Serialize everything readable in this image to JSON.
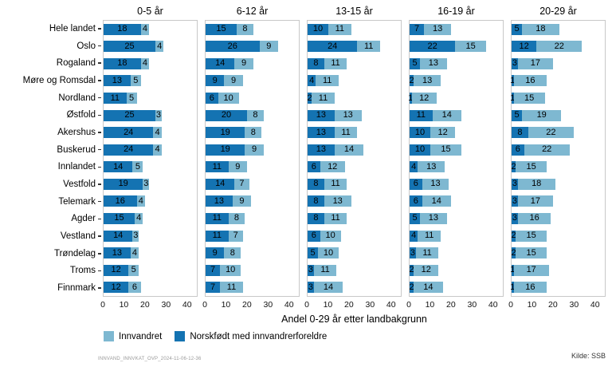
{
  "chart_data": {
    "type": "bar",
    "orientation": "horizontal-stacked",
    "grid": false,
    "xlim": [
      0,
      45
    ],
    "x_ticks": [
      0,
      10,
      20,
      30,
      40
    ],
    "xlabel": "Andel 0-29 år etter landbakgrunn",
    "colors": {
      "norskfodt": "#1473b2",
      "innvandret": "#7eb8d1",
      "panel_border": "#c8c8c8"
    },
    "categories": [
      "Hele landet",
      "Oslo",
      "Rogaland",
      "Møre og Romsdal",
      "Nordland",
      "Østfold",
      "Akershus",
      "Buskerud",
      "Innlandet",
      "Vestfold",
      "Telemark",
      "Agder",
      "Vestland",
      "Trøndelag",
      "Troms",
      "Finnmark"
    ],
    "facets": [
      {
        "title": "0-5 år",
        "series": [
          {
            "name": "Norskfødt med innvandrerforeldre",
            "values": [
              18,
              25,
              18,
              13,
              11,
              25,
              24,
              24,
              14,
              19,
              16,
              15,
              14,
              13,
              12,
              12
            ]
          },
          {
            "name": "Innvandret",
            "values": [
              4,
              4,
              4,
              5,
              5,
              3,
              4,
              4,
              5,
              3,
              4,
              4,
              3,
              4,
              5,
              6
            ]
          }
        ]
      },
      {
        "title": "6-12 år",
        "series": [
          {
            "name": "Norskfødt med innvandrerforeldre",
            "values": [
              15,
              26,
              14,
              9,
              6,
              20,
              19,
              19,
              11,
              14,
              13,
              11,
              11,
              9,
              7,
              7
            ]
          },
          {
            "name": "Innvandret",
            "values": [
              8,
              9,
              9,
              9,
              10,
              8,
              8,
              9,
              9,
              7,
              9,
              8,
              7,
              8,
              10,
              11
            ]
          }
        ]
      },
      {
        "title": "13-15 år",
        "series": [
          {
            "name": "Norskfødt med innvandrerforeldre",
            "values": [
              10,
              24,
              8,
              4,
              2,
              13,
              13,
              13,
              6,
              8,
              8,
              8,
              6,
              5,
              3,
              3
            ]
          },
          {
            "name": "Innvandret",
            "values": [
              11,
              11,
              11,
              11,
              11,
              13,
              11,
              14,
              12,
              11,
              13,
              11,
              10,
              10,
              11,
              14
            ]
          }
        ]
      },
      {
        "title": "16-19 år",
        "series": [
          {
            "name": "Norskfødt med innvandrerforeldre",
            "values": [
              7,
              22,
              5,
              2,
              1,
              11,
              10,
              10,
              4,
              6,
              6,
              5,
              4,
              3,
              2,
              2
            ]
          },
          {
            "name": "Innvandret",
            "values": [
              13,
              15,
              13,
              13,
              12,
              14,
              12,
              15,
              13,
              13,
              14,
              13,
              11,
              11,
              12,
              14
            ]
          }
        ]
      },
      {
        "title": "20-29 år",
        "series": [
          {
            "name": "Norskfødt med innvandrerforeldre",
            "values": [
              5,
              12,
              3,
              1,
              1,
              5,
              8,
              6,
              2,
              3,
              3,
              3,
              2,
              2,
              1,
              1
            ]
          },
          {
            "name": "Innvandret",
            "values": [
              18,
              22,
              17,
              16,
              15,
              19,
              22,
              22,
              15,
              18,
              17,
              16,
              15,
              15,
              17,
              16
            ]
          }
        ]
      }
    ],
    "legend": [
      {
        "label": "Innvandret",
        "color": "#7eb8d1"
      },
      {
        "label": "Norskfødt med innvandrerforeldre",
        "color": "#1473b2"
      }
    ],
    "legend_position": "bottom"
  },
  "footer": {
    "left": "INNVAND_INNVKAT_OVP_2024-11-06-12-36",
    "right": "Kilde: SSB"
  }
}
